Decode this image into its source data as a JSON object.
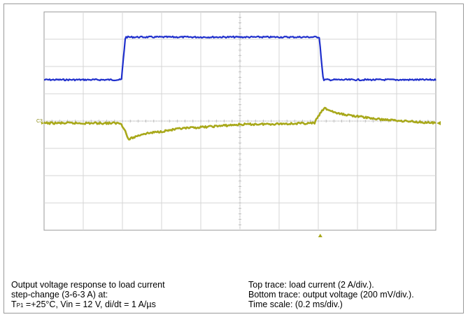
{
  "chart_data": {
    "type": "line",
    "title": "",
    "xlabel": "",
    "ylabel": "",
    "grid": true,
    "divisions": {
      "x": 10,
      "y": 8
    },
    "x_unit": "ms",
    "x_range": [
      0,
      2.0
    ],
    "time_scale_per_div": 0.2,
    "series": [
      {
        "name": "Top trace: load current",
        "scale_per_div": "2 A/div.",
        "color": "#1f2fcc",
        "x": [
          0,
          0.395,
          0.415,
          1.405,
          1.425,
          2.0
        ],
        "y": [
          3,
          3,
          6,
          6,
          3,
          3
        ]
      },
      {
        "name": "Bottom trace: output voltage",
        "scale_per_div": "200 mV/div.",
        "color": "#a8a81a",
        "x": [
          0,
          0.39,
          0.41,
          0.43,
          0.5,
          0.7,
          1.0,
          1.38,
          1.4,
          1.43,
          1.5,
          1.7,
          2.0
        ],
        "y": [
          0,
          0,
          -0.04,
          -0.12,
          -0.08,
          -0.04,
          -0.01,
          0,
          0.05,
          0.11,
          0.07,
          0.03,
          0
        ]
      }
    ],
    "markers": {
      "channel_label": "C3",
      "trigger_arrow": "bottom"
    }
  },
  "caption": {
    "left_line1": "Output voltage response to load current",
    "left_line2": "step-change (3-6-3 A) at:",
    "left_line3_prefix": "T",
    "left_line3_sub": "P1",
    "left_line3_rest": " =+25°C, Vin = 12 V, di/dt = 1 A/µs",
    "right_line1": "Top trace: load current (2 A/div.).",
    "right_line2": "Bottom trace: output voltage (200 mV/div.).",
    "right_line3": "Time scale: (0.2 ms/div.)"
  }
}
